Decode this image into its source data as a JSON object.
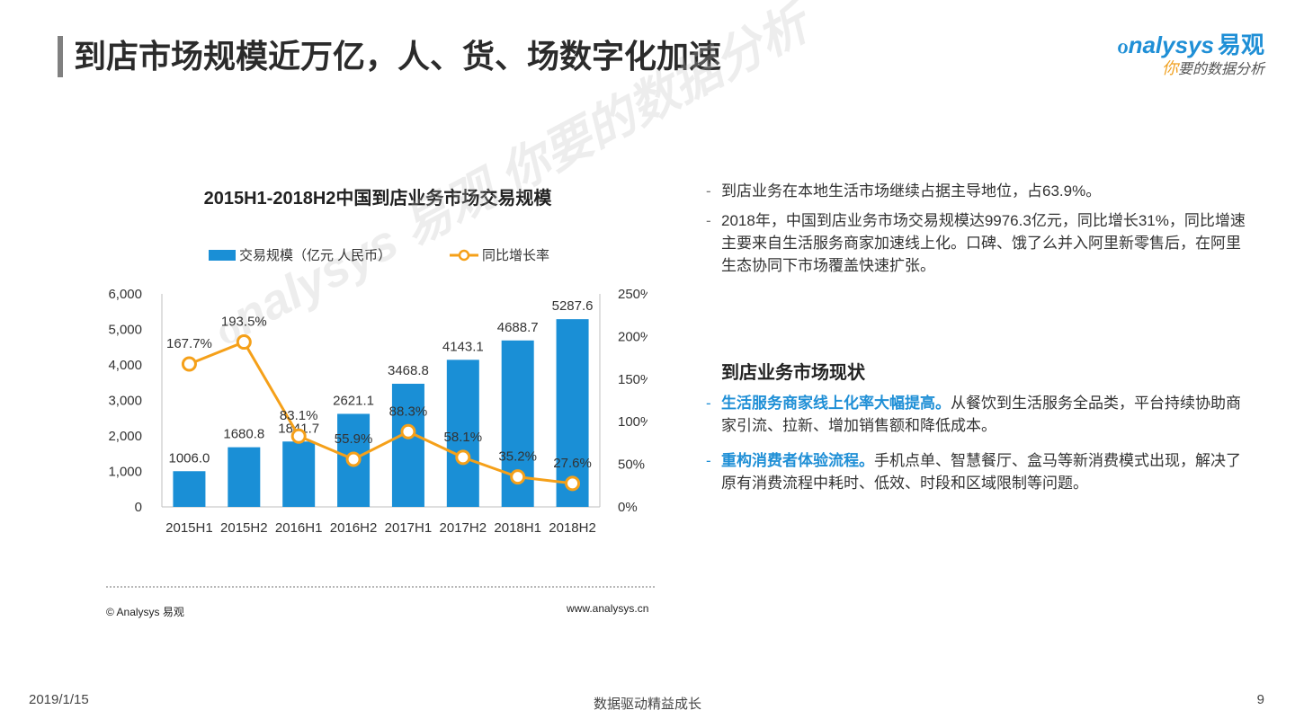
{
  "header": {
    "title": "到店市场规模近万亿，人、货、场数字化加速",
    "logo_brand": "nalysys",
    "logo_brand_prefix": "ℴ",
    "logo_cn": "易观",
    "logo_tagline_first": "你",
    "logo_tagline_rest": "要的数据分析"
  },
  "chart_data": {
    "type": "bar",
    "title": "2015H1-2018H2中国到店业务市场交易规模",
    "categories": [
      "2015H1",
      "2015H2",
      "2016H1",
      "2016H2",
      "2017H1",
      "2017H2",
      "2018H1",
      "2018H2"
    ],
    "series": [
      {
        "name": "交易规模（亿元 人民币）",
        "type": "bar",
        "axis": "left",
        "color": "#1a8fd6",
        "values": [
          1006.0,
          1680.8,
          1841.7,
          2621.1,
          3468.8,
          4143.1,
          4688.7,
          5287.6
        ],
        "labels": [
          "1006.0",
          "1680.8",
          "1841.7",
          "2621.1",
          "3468.8",
          "4143.1",
          "4688.7",
          "5287.6"
        ]
      },
      {
        "name": "同比增长率",
        "type": "line",
        "axis": "right",
        "color": "#f5a019",
        "values": [
          167.7,
          193.5,
          83.1,
          55.9,
          88.3,
          58.1,
          35.2,
          27.6
        ],
        "labels": [
          "167.7%",
          "193.5%",
          "83.1%",
          "55.9%",
          "88.3%",
          "58.1%",
          "35.2%",
          "27.6%"
        ]
      }
    ],
    "y_left": {
      "min": 0,
      "max": 6000,
      "ticks": [
        "0",
        "1,000",
        "2,000",
        "3,000",
        "4,000",
        "5,000",
        "6,000"
      ]
    },
    "y_right": {
      "min": 0,
      "max": 250,
      "ticks": [
        "0%",
        "50%",
        "100%",
        "150%",
        "200%",
        "250%"
      ]
    },
    "legend_position": "top",
    "grid": false
  },
  "watermark": "ℴnalysys 易观 你要的数据分析",
  "source": {
    "copyright": "© Analysys 易观",
    "url": "www.analysys.cn"
  },
  "bullets": [
    "到店业务在本地生活市场继续占据主导地位，占63.9%。",
    "2018年，中国到店业务市场交易规模达9976.3亿元，同比增长31%，同比增速主要来自生活服务商家加速线上化。口碑、饿了么并入阿里新零售后，在阿里生态协同下市场覆盖快速扩张。"
  ],
  "status": {
    "title": "到店业务市场现状",
    "items": [
      {
        "highlight": "生活服务商家线上化率大幅提高。",
        "text": "从餐饮到生活服务全品类，平台持续协助商家引流、拉新、增加销售额和降低成本。"
      },
      {
        "highlight": "重构消费者体验流程。",
        "text": "手机点单、智慧餐厅、盒马等新消费模式出现，解决了原有消费流程中耗时、低效、时段和区域限制等问题。"
      }
    ]
  },
  "footer": {
    "date": "2019/1/15",
    "slogan": "数据驱动精益成长",
    "page": "9"
  },
  "bullet_dash": "-"
}
